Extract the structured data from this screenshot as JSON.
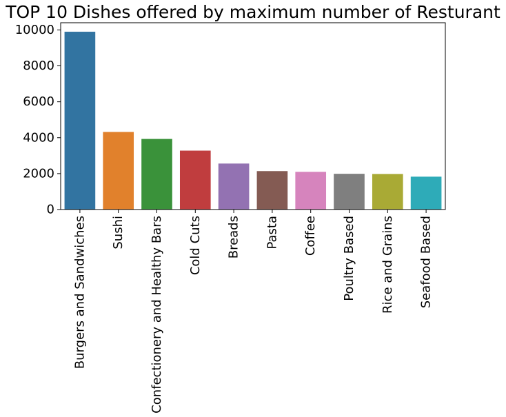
{
  "chart_data": {
    "type": "bar",
    "title": "TOP 10 Dishes offered by maximum number of Resturant",
    "xlabel": "",
    "ylabel": "",
    "categories": [
      "Burgers and Sandwiches",
      "Sushi",
      "Confectionery and Healthy Bars",
      "Cold Cuts",
      "Breads",
      "Pasta",
      "Coffee",
      "Poultry Based",
      "Rice and Grains",
      "Seafood Based"
    ],
    "values": [
      9900,
      4320,
      3930,
      3280,
      2560,
      2140,
      2100,
      1990,
      1980,
      1830
    ],
    "colors": [
      "#3274a1",
      "#e1812c",
      "#3a923a",
      "#c03d3e",
      "#9372b2",
      "#845b53",
      "#d684bd",
      "#7f7f7f",
      "#a9aa35",
      "#2eabb8"
    ],
    "ylim": [
      0,
      10400
    ],
    "yticks": [
      0,
      2000,
      4000,
      6000,
      8000,
      10000
    ],
    "ytick_labels": [
      "0",
      "2000",
      "4000",
      "6000",
      "8000",
      "10000"
    ],
    "grid": false,
    "legend": "none"
  }
}
